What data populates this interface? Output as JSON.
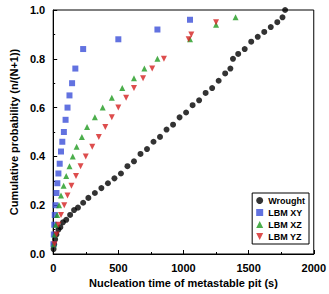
{
  "chart_data": {
    "type": "scatter",
    "x_label": "Nucleation time of metastable pit (s)",
    "y_label": "Cumulative probability (n/(N+1))",
    "xlim": [
      0,
      2000
    ],
    "xticks": [
      0,
      500,
      1000,
      1500,
      2000
    ],
    "ylim": [
      0,
      1.0
    ],
    "yticks": [
      {
        "value": 0,
        "label": "0.0"
      },
      {
        "value": 0.2,
        "label": "0.2"
      },
      {
        "value": 0.4,
        "label": "0.4"
      },
      {
        "value": 0.6,
        "label": "0.6"
      },
      {
        "value": 0.8,
        "label": "0.8"
      },
      {
        "value": 1.0,
        "label": "1.0"
      }
    ],
    "grid": false,
    "legend": "lower right",
    "series": [
      {
        "name": "Wrought",
        "color": "#000000",
        "marker": "circle",
        "x": [
          3,
          8,
          15,
          25,
          40,
          55,
          75,
          100,
          130,
          160,
          190,
          230,
          270,
          320,
          370,
          420,
          470,
          520,
          570,
          620,
          670,
          720,
          770,
          820,
          870,
          920,
          970,
          1020,
          1070,
          1120,
          1170,
          1220,
          1270,
          1320,
          1360,
          1380,
          1420,
          1470,
          1520,
          1570,
          1620,
          1670,
          1720,
          1760,
          1780
        ],
        "values": [
          0.02,
          0.04,
          0.06,
          0.08,
          0.1,
          0.11,
          0.13,
          0.14,
          0.16,
          0.18,
          0.19,
          0.21,
          0.23,
          0.25,
          0.27,
          0.29,
          0.31,
          0.33,
          0.36,
          0.38,
          0.41,
          0.43,
          0.46,
          0.48,
          0.51,
          0.53,
          0.56,
          0.58,
          0.61,
          0.63,
          0.66,
          0.68,
          0.71,
          0.74,
          0.76,
          0.8,
          0.82,
          0.84,
          0.87,
          0.89,
          0.91,
          0.93,
          0.95,
          0.97,
          1.0
        ]
      },
      {
        "name": "LBM XY",
        "color": "#3b4fd8",
        "marker": "square",
        "x": [
          2,
          5,
          8,
          12,
          18,
          25,
          32,
          40,
          50,
          60,
          70,
          82,
          95,
          110,
          125,
          145,
          170,
          230,
          500,
          800,
          1050
        ],
        "values": [
          0.04,
          0.08,
          0.12,
          0.16,
          0.2,
          0.25,
          0.29,
          0.33,
          0.37,
          0.42,
          0.46,
          0.5,
          0.55,
          0.6,
          0.65,
          0.7,
          0.76,
          0.84,
          0.88,
          0.92,
          0.96
        ]
      },
      {
        "name": "LBM XZ",
        "color": "#1f9a1f",
        "marker": "triangle-up",
        "x": [
          5,
          12,
          20,
          30,
          45,
          60,
          80,
          100,
          125,
          150,
          180,
          220,
          260,
          320,
          380,
          450,
          530,
          620,
          700,
          800,
          1050,
          1250,
          1400
        ],
        "values": [
          0.04,
          0.08,
          0.12,
          0.16,
          0.2,
          0.24,
          0.28,
          0.32,
          0.36,
          0.4,
          0.44,
          0.48,
          0.52,
          0.56,
          0.6,
          0.64,
          0.68,
          0.72,
          0.76,
          0.8,
          0.88,
          0.94,
          0.97
        ]
      },
      {
        "name": "LBM YZ",
        "color": "#d42020",
        "marker": "triangle-down",
        "x": [
          10,
          25,
          40,
          60,
          85,
          110,
          140,
          175,
          210,
          250,
          300,
          350,
          400,
          450,
          500,
          560,
          620,
          690,
          760,
          850,
          1040,
          1060,
          1250
        ],
        "values": [
          0.04,
          0.08,
          0.12,
          0.16,
          0.2,
          0.24,
          0.28,
          0.32,
          0.36,
          0.4,
          0.44,
          0.48,
          0.52,
          0.56,
          0.6,
          0.64,
          0.68,
          0.72,
          0.76,
          0.8,
          0.88,
          0.9,
          0.95
        ]
      }
    ]
  }
}
